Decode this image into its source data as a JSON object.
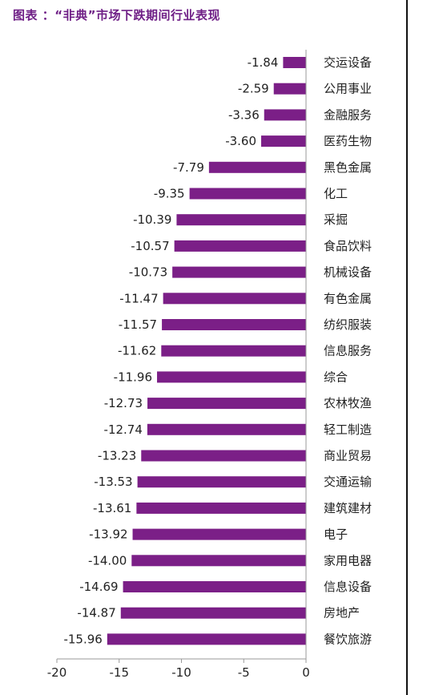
{
  "title": "图表 ：“非典”市场下跌期间行业表现",
  "colors": {
    "bar": "#7b1f87",
    "text": "#222222",
    "title": "#6f1f86",
    "axis": "#999999"
  },
  "chart_data": {
    "type": "bar",
    "orientation": "horizontal",
    "categories": [
      "交运设备",
      "公用事业",
      "金融服务",
      "医药生物",
      "黑色金属",
      "化工",
      "采掘",
      "食品饮料",
      "机械设备",
      "有色金属",
      "纺织服装",
      "信息服务",
      "综合",
      "农林牧渔",
      "轻工制造",
      "商业贸易",
      "交通运输",
      "建筑建材",
      "电子",
      "家用电器",
      "信息设备",
      "房地产",
      "餐饮旅游"
    ],
    "values": [
      -1.84,
      -2.59,
      -3.36,
      -3.6,
      -7.79,
      -9.35,
      -10.39,
      -10.57,
      -10.73,
      -11.47,
      -11.57,
      -11.62,
      -11.96,
      -12.73,
      -12.74,
      -13.23,
      -13.53,
      -13.61,
      -13.92,
      -14.0,
      -14.69,
      -14.87,
      -15.96
    ],
    "value_labels": [
      "-1.84",
      "-2.59",
      "-3.36",
      "-3.60",
      "-7.79",
      "-9.35",
      "-10.39",
      "-10.57",
      "-10.73",
      "-11.47",
      "-11.57",
      "-11.62",
      "-11.96",
      "-12.73",
      "-12.74",
      "-13.23",
      "-13.53",
      "-13.61",
      "-13.92",
      "-14.00",
      "-14.69",
      "-14.87",
      "-15.96"
    ],
    "xlim": [
      -20,
      0
    ],
    "xticks": [
      "-20",
      "-15",
      "-10",
      "-5",
      "0"
    ],
    "grid": false,
    "legend": "none"
  }
}
